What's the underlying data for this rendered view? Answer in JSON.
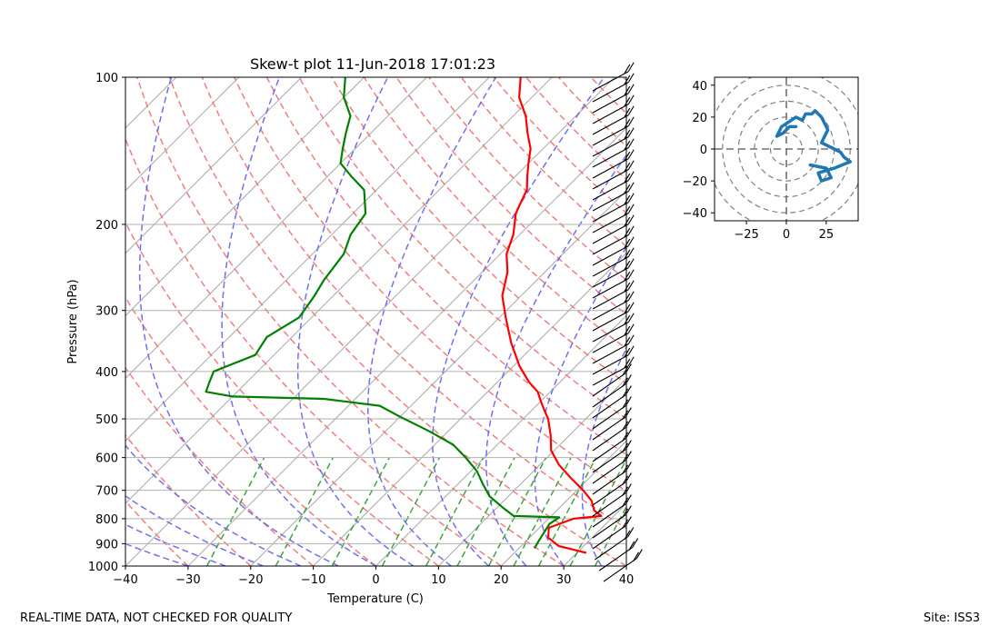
{
  "chart_data": [
    {
      "type": "line",
      "title": "Skew-t plot 11-Jun-2018 17:01:23",
      "xlabel": "Temperature (C)",
      "ylabel": "Pressure (hPa)",
      "xlim": [
        -40,
        40
      ],
      "ylim": [
        1000,
        100
      ],
      "y_scale": "log",
      "skew": true,
      "grid": true,
      "x_ticks": [
        -40,
        -30,
        -20,
        -10,
        0,
        10,
        20,
        30,
        40
      ],
      "y_ticks": [
        100,
        200,
        300,
        400,
        500,
        600,
        700,
        800,
        900,
        1000
      ],
      "series": [
        {
          "color": "#ff0000",
          "values": [
            [
              31.5,
              940
            ],
            [
              26,
              910
            ],
            [
              23,
              875
            ],
            [
              21.5,
              835
            ],
            [
              24,
              800
            ],
            [
              28,
              790
            ],
            [
              26,
              770
            ],
            [
              24,
              735
            ],
            [
              21,
              700
            ],
            [
              17,
              660
            ],
            [
              13,
              620
            ],
            [
              9.5,
              580
            ],
            [
              7,
              540
            ],
            [
              4,
              500
            ],
            [
              2,
              480
            ],
            [
              0,
              460
            ],
            [
              -2,
              440
            ],
            [
              -5,
              420
            ],
            [
              -9,
              390
            ],
            [
              -14,
              350
            ],
            [
              -19,
              310
            ],
            [
              -23,
              280
            ],
            [
              -26,
              250
            ],
            [
              -29,
              230
            ],
            [
              -31,
              210
            ],
            [
              -34,
              190
            ],
            [
              -35,
              180
            ],
            [
              -36,
              170
            ],
            [
              -38,
              160
            ],
            [
              -40,
              150
            ],
            [
              -42,
              140
            ],
            [
              -45,
              130
            ],
            [
              -48,
              120
            ],
            [
              -52,
              110
            ],
            [
              -55,
              100
            ]
          ]
        },
        {
          "color": "#008000",
          "values": [
            [
              22.5,
              920
            ],
            [
              22,
              890
            ],
            [
              21.5,
              855
            ],
            [
              21,
              820
            ],
            [
              21.5,
              795
            ],
            [
              14,
              790
            ],
            [
              11,
              760
            ],
            [
              7,
              720
            ],
            [
              4,
              680
            ],
            [
              1,
              640
            ],
            [
              -3,
              600
            ],
            [
              -7,
              565
            ],
            [
              -13,
              530
            ],
            [
              -20,
              495
            ],
            [
              -25,
              470
            ],
            [
              -35,
              455
            ],
            [
              -50,
              450
            ],
            [
              -55,
              440
            ],
            [
              -56,
              420
            ],
            [
              -57,
              400
            ],
            [
              -53,
              370
            ],
            [
              -54,
              340
            ],
            [
              -52,
              310
            ],
            [
              -53,
              280
            ],
            [
              -54,
              260
            ],
            [
              -55,
              230
            ],
            [
              -57,
              210
            ],
            [
              -58,
              190
            ],
            [
              -62,
              170
            ],
            [
              -66,
              160
            ],
            [
              -70,
              150
            ],
            [
              -72,
              140
            ],
            [
              -74,
              130
            ],
            [
              -76,
              120
            ],
            [
              -80,
              110
            ],
            [
              -83,
              100
            ]
          ]
        }
      ],
      "reference_lines": {
        "dry_adiabats_color": "#f07070",
        "moist_adiabats_color": "#6060ee",
        "mixing_ratio_color": "#2a9a2a",
        "isotherms_color": "#aaaaaa"
      },
      "wind_barbs": {
        "color": "#000000",
        "position": "right edge of skew-t"
      }
    },
    {
      "type": "line",
      "title": "",
      "xlim": [
        -45,
        45
      ],
      "ylim": [
        -45,
        45
      ],
      "x_ticks": [
        -25,
        0,
        25
      ],
      "y_ticks": [
        40,
        20,
        0,
        -20,
        -40
      ],
      "rings": [
        10,
        20,
        30,
        40,
        50
      ],
      "series": [
        {
          "color": "#1f77b4",
          "values": [
            [
              15,
              -10
            ],
            [
              25,
              -12
            ],
            [
              28,
              -18
            ],
            [
              22,
              -20
            ],
            [
              20,
              -15
            ],
            [
              30,
              -12
            ],
            [
              40,
              -8
            ],
            [
              36,
              -5
            ],
            [
              34,
              -2
            ],
            [
              26,
              2
            ],
            [
              22,
              4
            ],
            [
              24,
              8
            ],
            [
              26,
              12
            ],
            [
              24,
              16
            ],
            [
              22,
              20
            ],
            [
              18,
              24
            ],
            [
              16,
              22
            ],
            [
              12,
              22
            ],
            [
              10,
              18
            ],
            [
              6,
              20
            ],
            [
              0,
              16
            ],
            [
              -3,
              14
            ],
            [
              -6,
              8
            ],
            [
              -2,
              10
            ],
            [
              2,
              14
            ],
            [
              6,
              14
            ]
          ]
        }
      ]
    }
  ],
  "footer": {
    "left": "REAL-TIME DATA, NOT CHECKED FOR QUALITY",
    "right": "Site: ISS3"
  }
}
